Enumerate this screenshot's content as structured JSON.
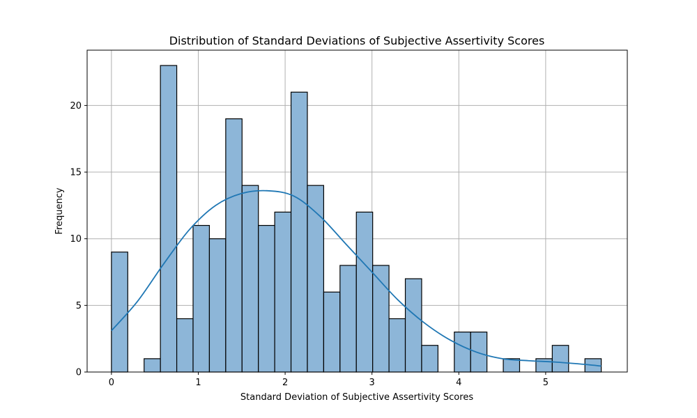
{
  "chart_data": {
    "type": "histogram",
    "title": "Distribution of Standard Deviations of Subjective Assertivity Scores",
    "xlabel": "Standard Deviation of Subjective Assertivity Scores",
    "ylabel": "Frequency",
    "xlim": [
      -0.28,
      5.94
    ],
    "ylim": [
      0,
      24.15
    ],
    "xticks": [
      0,
      1,
      2,
      3,
      4,
      5
    ],
    "yticks": [
      0,
      5,
      10,
      15,
      20
    ],
    "grid": true,
    "bin_width": 0.188,
    "bins": [
      {
        "x0": 0.0,
        "value": 9
      },
      {
        "x0": 0.188,
        "value": 0
      },
      {
        "x0": 0.376,
        "value": 1
      },
      {
        "x0": 0.564,
        "value": 23
      },
      {
        "x0": 0.752,
        "value": 4
      },
      {
        "x0": 0.94,
        "value": 11
      },
      {
        "x0": 1.128,
        "value": 10
      },
      {
        "x0": 1.316,
        "value": 19
      },
      {
        "x0": 1.504,
        "value": 14
      },
      {
        "x0": 1.692,
        "value": 11
      },
      {
        "x0": 1.88,
        "value": 12
      },
      {
        "x0": 2.068,
        "value": 21
      },
      {
        "x0": 2.256,
        "value": 14
      },
      {
        "x0": 2.444,
        "value": 6
      },
      {
        "x0": 2.632,
        "value": 8
      },
      {
        "x0": 2.82,
        "value": 12
      },
      {
        "x0": 3.008,
        "value": 8
      },
      {
        "x0": 3.196,
        "value": 4
      },
      {
        "x0": 3.384,
        "value": 7
      },
      {
        "x0": 3.572,
        "value": 2
      },
      {
        "x0": 3.76,
        "value": 0
      },
      {
        "x0": 3.948,
        "value": 3
      },
      {
        "x0": 4.136,
        "value": 3
      },
      {
        "x0": 4.324,
        "value": 0
      },
      {
        "x0": 4.512,
        "value": 1
      },
      {
        "x0": 4.7,
        "value": 0
      },
      {
        "x0": 4.888,
        "value": 1
      },
      {
        "x0": 5.076,
        "value": 2
      },
      {
        "x0": 5.264,
        "value": 0
      },
      {
        "x0": 5.452,
        "value": 1
      }
    ],
    "kde": {
      "x": [
        0.0,
        0.3,
        0.6,
        0.9,
        1.2,
        1.5,
        1.8,
        2.1,
        2.4,
        2.7,
        3.0,
        3.3,
        3.6,
        3.9,
        4.2,
        4.5,
        4.8,
        5.1,
        5.4,
        5.64
      ],
      "y": [
        3.1,
        5.3,
        8.1,
        10.7,
        12.5,
        13.4,
        13.6,
        13.2,
        11.7,
        9.6,
        7.5,
        5.4,
        3.7,
        2.4,
        1.5,
        1.0,
        0.85,
        0.75,
        0.6,
        0.45
      ]
    },
    "colors": {
      "bar_fill": "#8db6d8",
      "bar_edge": "#000000",
      "kde_line": "#1f77b4",
      "grid": "#b0b0b0"
    }
  }
}
